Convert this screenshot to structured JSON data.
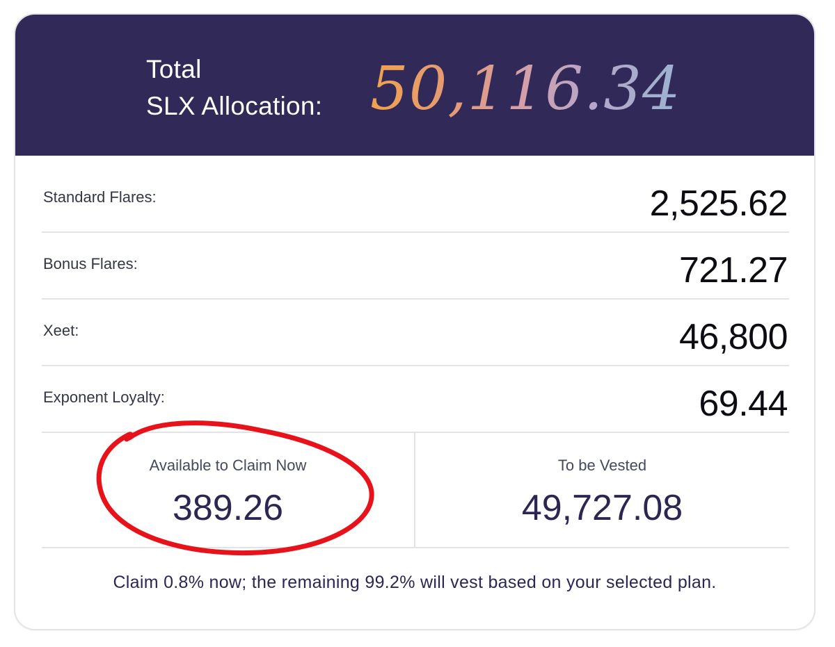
{
  "header": {
    "total_line1": "Total",
    "total_line2": "SLX Allocation:",
    "total_value": "50,116.34"
  },
  "rows": [
    {
      "label": "Standard Flares:",
      "value": "2,525.62"
    },
    {
      "label": "Bonus Flares:",
      "value": "721.27"
    },
    {
      "label": "Xeet:",
      "value": "46,800"
    },
    {
      "label": "Exponent Loyalty:",
      "value": "69.44"
    }
  ],
  "claim": {
    "available_title": "Available to Claim Now",
    "available_amount": "389.26",
    "vested_title": "To be Vested",
    "vested_amount": "49,727.08"
  },
  "footnote": "Claim 0.8% now; the remaining 99.2% will vest based on your selected plan.",
  "colors": {
    "header_bg": "#312a59",
    "annotation": "#e8121b",
    "accent_text": "#2c2752"
  }
}
